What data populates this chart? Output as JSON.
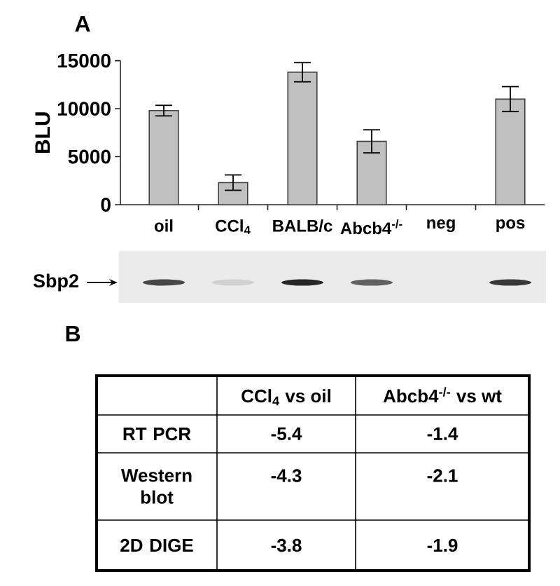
{
  "chart_data": [
    {
      "type": "bar",
      "title": "A",
      "ylabel": "BLU",
      "categories": [
        "oil",
        "CCl$_{4}$",
        "BALB/c",
        "Abcb4$^{-/-}$",
        "neg",
        "pos"
      ],
      "values": [
        9800,
        2300,
        13800,
        6600,
        null,
        11000
      ],
      "errors": [
        550,
        800,
        1000,
        1200,
        null,
        1300
      ],
      "color": "#c0c0c0",
      "ylim": [
        0,
        15000
      ],
      "yticks": [
        0,
        5000,
        10000,
        15000
      ],
      "annotations": [
        "Sbp2"
      ]
    },
    {
      "type": "other",
      "title": "B",
      "categories": [
        "CCl$_{4}$ vs oil",
        "Abcb4$^{-/-}$ vs wt"
      ],
      "y_categories": [
        "RT PCR",
        "Western blot",
        "2D DIGE"
      ],
      "cell_labels": [
        [
          "-5.4",
          "-1.4"
        ],
        [
          "-4.3",
          "-2.1"
        ],
        [
          "-3.8",
          "-1.9"
        ]
      ]
    }
  ]
}
